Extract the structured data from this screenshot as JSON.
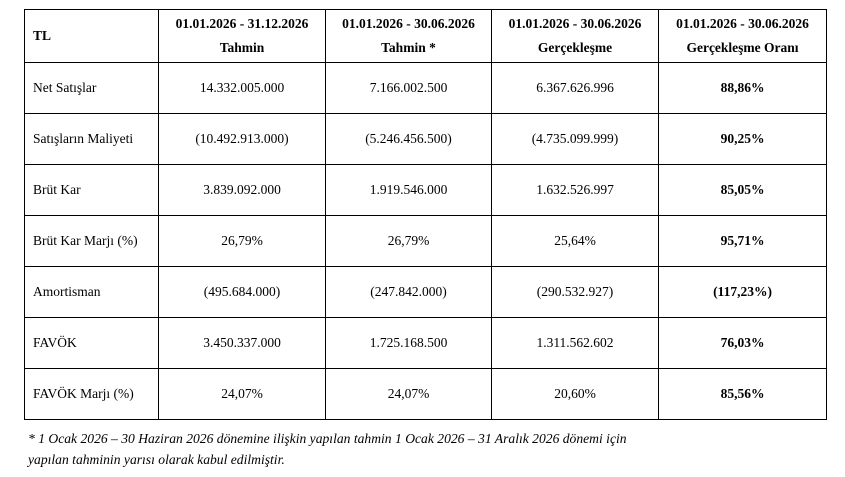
{
  "table": {
    "corner_label": "TL",
    "headers": [
      {
        "period": "01.01.2026 - 31.12.2026",
        "label": "Tahmin"
      },
      {
        "period": "01.01.2026 - 30.06.2026",
        "label": "Tahmin *"
      },
      {
        "period": "01.01.2026 - 30.06.2026",
        "label": "Gerçekleşme"
      },
      {
        "period": "01.01.2026 - 30.06.2026",
        "label": "Gerçekleşme Oranı"
      }
    ],
    "rows": [
      {
        "label": "Net Satışlar",
        "forecast_year": "14.332.005.000",
        "forecast_half": "7.166.002.500",
        "actual": "6.367.626.996",
        "rate": "88,86%"
      },
      {
        "label": "Satışların Maliyeti",
        "forecast_year": "(10.492.913.000)",
        "forecast_half": "(5.246.456.500)",
        "actual": "(4.735.099.999)",
        "rate": "90,25%"
      },
      {
        "label": "Brüt Kar",
        "forecast_year": "3.839.092.000",
        "forecast_half": "1.919.546.000",
        "actual": "1.632.526.997",
        "rate": "85,05%"
      },
      {
        "label": "Brüt Kar Marjı (%)",
        "forecast_year": "26,79%",
        "forecast_half": "26,79%",
        "actual": "25,64%",
        "rate": "95,71%"
      },
      {
        "label": "Amortisman",
        "forecast_year": "(495.684.000)",
        "forecast_half": "(247.842.000)",
        "actual": "(290.532.927)",
        "rate": "(117,23%)"
      },
      {
        "label": "FAVÖK",
        "forecast_year": "3.450.337.000",
        "forecast_half": "1.725.168.500",
        "actual": "1.311.562.602",
        "rate": "76,03%"
      },
      {
        "label": "FAVÖK Marjı (%)",
        "forecast_year": "24,07%",
        "forecast_half": "24,07%",
        "actual": "20,60%",
        "rate": "85,56%"
      }
    ]
  },
  "footnote": {
    "line1": "* 1 Ocak 2026 – 30 Haziran 2026 dönemine ilişkin yapılan tahmin 1 Ocak 2026 – 31 Aralık 2026 dönemi için",
    "line2": "yapılan tahminin yarısı olarak kabul edilmiştir."
  }
}
